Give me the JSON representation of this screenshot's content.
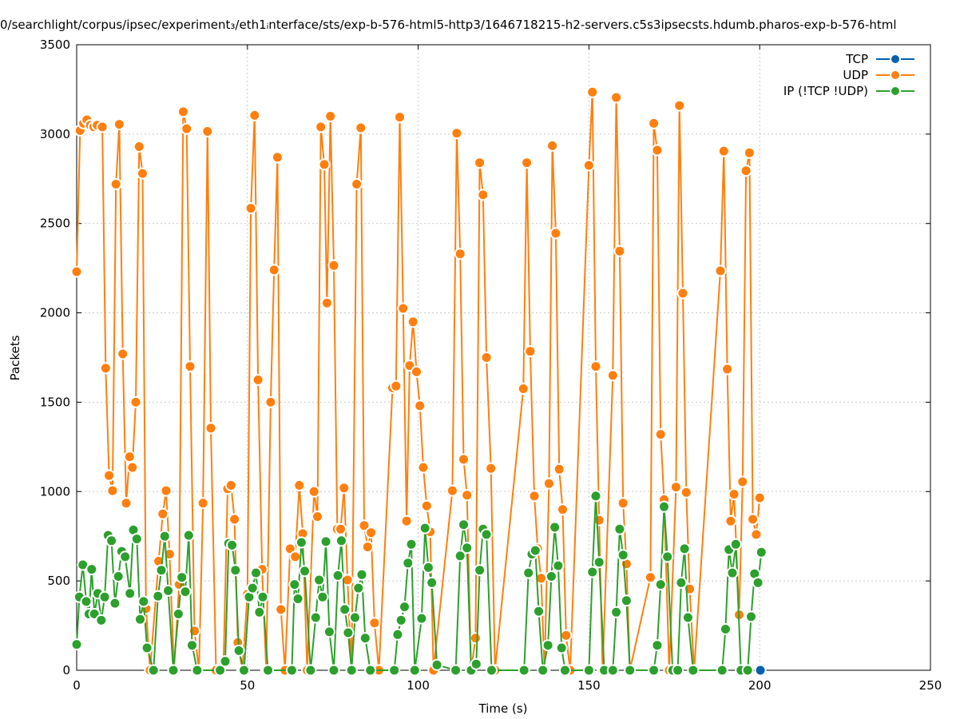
{
  "chart_data": {
    "type": "line",
    "title": "0/searchlight/corpus/ipsec/experiment₃/eth1ᵢnterface/sts/exp-b-576-html5-http3/1646718215-h2-servers.c5s3ipsecsts.hdumb.pharos-exp-b-576-html",
    "xlabel": "Time (s)",
    "ylabel": "Packets",
    "xlim": [
      0,
      250
    ],
    "ylim": [
      0,
      3500
    ],
    "xticks": [
      0,
      50,
      100,
      150,
      200,
      250
    ],
    "yticks": [
      0,
      500,
      1000,
      1500,
      2000,
      2500,
      3000,
      3500
    ],
    "grid": true,
    "legend_position": "top-right",
    "series": [
      {
        "name": "TCP",
        "color": "#0060ad",
        "points": [
          [
            200.2,
            0
          ]
        ]
      },
      {
        "name": "UDP",
        "color": "#ff7f0e",
        "points": [
          [
            0,
            2230
          ],
          [
            1,
            3020
          ],
          [
            2,
            3060
          ],
          [
            3,
            3080
          ],
          [
            4,
            3050
          ],
          [
            5,
            3040
          ],
          [
            6,
            3050
          ],
          [
            7.5,
            3040
          ],
          [
            8.5,
            1690
          ],
          [
            9.5,
            1090
          ],
          [
            10.5,
            1005
          ],
          [
            11.5,
            2720
          ],
          [
            12.5,
            3055
          ],
          [
            13.5,
            1770
          ],
          [
            14.5,
            935
          ],
          [
            15.5,
            1195
          ],
          [
            16.3,
            1135
          ],
          [
            17.3,
            1500
          ],
          [
            18.3,
            2930
          ],
          [
            19.3,
            2780
          ],
          [
            20.3,
            345
          ],
          [
            21.5,
            0
          ],
          [
            24,
            610
          ],
          [
            25.2,
            875
          ],
          [
            26.2,
            1005
          ],
          [
            27.2,
            650
          ],
          [
            28.5,
            0
          ],
          [
            30,
            480
          ],
          [
            31.2,
            3125
          ],
          [
            32.2,
            3030
          ],
          [
            33.2,
            1700
          ],
          [
            34.5,
            220
          ],
          [
            35.8,
            0
          ],
          [
            37,
            935
          ],
          [
            38.3,
            3015
          ],
          [
            39.3,
            1355
          ],
          [
            40.8,
            0
          ],
          [
            43,
            45
          ],
          [
            44.2,
            1015
          ],
          [
            45.2,
            1035
          ],
          [
            46.2,
            845
          ],
          [
            47.2,
            155
          ],
          [
            48.5,
            0
          ],
          [
            50,
            425
          ],
          [
            51,
            2585
          ],
          [
            52.1,
            3105
          ],
          [
            53.1,
            1625
          ],
          [
            54.3,
            565
          ],
          [
            55.5,
            0
          ],
          [
            56.8,
            1500
          ],
          [
            57.8,
            2240
          ],
          [
            58.8,
            2870
          ],
          [
            59.8,
            340
          ],
          [
            61,
            0
          ],
          [
            62.5,
            680
          ],
          [
            64,
            635
          ],
          [
            65.2,
            1035
          ],
          [
            66.2,
            765
          ],
          [
            67.5,
            0
          ],
          [
            69.5,
            1000
          ],
          [
            70.5,
            860
          ],
          [
            71.5,
            3040
          ],
          [
            72.5,
            2830
          ],
          [
            73.3,
            2055
          ],
          [
            74.3,
            3100
          ],
          [
            75.3,
            2265
          ],
          [
            76.3,
            790
          ],
          [
            77.3,
            790
          ],
          [
            78.3,
            1020
          ],
          [
            79.3,
            505
          ],
          [
            80.5,
            0
          ],
          [
            82,
            2720
          ],
          [
            83.2,
            3035
          ],
          [
            84.2,
            810
          ],
          [
            85.2,
            690
          ],
          [
            86.2,
            770
          ],
          [
            87.2,
            265
          ],
          [
            88.5,
            0
          ],
          [
            92.5,
            1580
          ],
          [
            93.5,
            1590
          ],
          [
            94.6,
            3095
          ],
          [
            95.6,
            2025
          ],
          [
            96.6,
            835
          ],
          [
            97.5,
            1705
          ],
          [
            98.5,
            1950
          ],
          [
            99.5,
            1670
          ],
          [
            100.5,
            1480
          ],
          [
            101.5,
            1135
          ],
          [
            102.5,
            920
          ],
          [
            103.5,
            775
          ],
          [
            104.5,
            0
          ],
          [
            110,
            1005
          ],
          [
            111.3,
            3005
          ],
          [
            112.3,
            2330
          ],
          [
            113.3,
            1180
          ],
          [
            114.3,
            980
          ],
          [
            115.5,
            0
          ],
          [
            116.8,
            180
          ],
          [
            118,
            2840
          ],
          [
            119,
            2660
          ],
          [
            120,
            1750
          ],
          [
            121.3,
            1130
          ],
          [
            122.5,
            0
          ],
          [
            130.8,
            1575
          ],
          [
            131.8,
            2840
          ],
          [
            132.8,
            1785
          ],
          [
            134,
            975
          ],
          [
            135,
            680
          ],
          [
            136,
            515
          ],
          [
            137,
            0
          ],
          [
            138.3,
            1045
          ],
          [
            139.3,
            2935
          ],
          [
            140.3,
            2445
          ],
          [
            141.3,
            1125
          ],
          [
            142.3,
            900
          ],
          [
            143.3,
            195
          ],
          [
            144.5,
            0
          ],
          [
            150,
            2825
          ],
          [
            151,
            3235
          ],
          [
            152,
            1700
          ],
          [
            153,
            840
          ],
          [
            154,
            0
          ],
          [
            157,
            1650
          ],
          [
            158,
            3205
          ],
          [
            159,
            2345
          ],
          [
            160,
            935
          ],
          [
            161,
            595
          ],
          [
            162,
            0
          ],
          [
            168,
            520
          ],
          [
            169,
            3060
          ],
          [
            170,
            2910
          ],
          [
            171,
            1320
          ],
          [
            172,
            955
          ],
          [
            173.5,
            0
          ],
          [
            175.5,
            1025
          ],
          [
            176.5,
            3160
          ],
          [
            177.5,
            2110
          ],
          [
            178.5,
            995
          ],
          [
            179.5,
            455
          ],
          [
            180.8,
            0
          ],
          [
            188.5,
            2235
          ],
          [
            189.5,
            2905
          ],
          [
            190.5,
            1685
          ],
          [
            191.5,
            835
          ],
          [
            192.5,
            985
          ],
          [
            194,
            310
          ],
          [
            195,
            1055
          ],
          [
            196,
            2795
          ],
          [
            197,
            2895
          ],
          [
            198,
            845
          ],
          [
            199,
            760
          ],
          [
            200,
            965
          ]
        ]
      },
      {
        "name": "IP (!TCP  !UDP)",
        "color": "#2ca02c",
        "points": [
          [
            0,
            145
          ],
          [
            0.8,
            410
          ],
          [
            1.8,
            590
          ],
          [
            2.8,
            385
          ],
          [
            3.6,
            315
          ],
          [
            4.4,
            565
          ],
          [
            5.2,
            315
          ],
          [
            6.2,
            430
          ],
          [
            7.2,
            280
          ],
          [
            8.2,
            410
          ],
          [
            9.2,
            755
          ],
          [
            10.2,
            725
          ],
          [
            11.2,
            375
          ],
          [
            12.2,
            525
          ],
          [
            13.2,
            665
          ],
          [
            14.2,
            635
          ],
          [
            15.6,
            430
          ],
          [
            16.6,
            785
          ],
          [
            17.6,
            735
          ],
          [
            18.6,
            285
          ],
          [
            19.6,
            385
          ],
          [
            20.6,
            125
          ],
          [
            22.5,
            0
          ],
          [
            23.8,
            415
          ],
          [
            24.8,
            560
          ],
          [
            25.8,
            750
          ],
          [
            26.8,
            445
          ],
          [
            28.3,
            0
          ],
          [
            29.8,
            315
          ],
          [
            30.8,
            520
          ],
          [
            31.8,
            440
          ],
          [
            32.8,
            755
          ],
          [
            33.8,
            140
          ],
          [
            35.3,
            0
          ],
          [
            42,
            0
          ],
          [
            43.5,
            50
          ],
          [
            44.5,
            710
          ],
          [
            45.5,
            700
          ],
          [
            46.5,
            560
          ],
          [
            47.5,
            110
          ],
          [
            49,
            0
          ],
          [
            50.5,
            410
          ],
          [
            51.5,
            460
          ],
          [
            52.5,
            545
          ],
          [
            53.5,
            325
          ],
          [
            54.5,
            410
          ],
          [
            56,
            0
          ],
          [
            63,
            0
          ],
          [
            63.8,
            480
          ],
          [
            64.8,
            400
          ],
          [
            65.8,
            715
          ],
          [
            66.8,
            555
          ],
          [
            68.5,
            0
          ],
          [
            70,
            295
          ],
          [
            71,
            505
          ],
          [
            72,
            410
          ],
          [
            73,
            720
          ],
          [
            74,
            215
          ],
          [
            75.3,
            0
          ],
          [
            76.5,
            530
          ],
          [
            77.5,
            725
          ],
          [
            78.5,
            340
          ],
          [
            79.5,
            210
          ],
          [
            80.5,
            0
          ],
          [
            81.5,
            295
          ],
          [
            82.5,
            460
          ],
          [
            83.5,
            535
          ],
          [
            84.5,
            180
          ],
          [
            86,
            0
          ],
          [
            93,
            0
          ],
          [
            94,
            200
          ],
          [
            95,
            280
          ],
          [
            96,
            355
          ],
          [
            97,
            600
          ],
          [
            98,
            705
          ],
          [
            99,
            0
          ],
          [
            101,
            290
          ],
          [
            102,
            795
          ],
          [
            103,
            575
          ],
          [
            104,
            490
          ],
          [
            105.5,
            30
          ],
          [
            111,
            0
          ],
          [
            112.3,
            640
          ],
          [
            113.3,
            815
          ],
          [
            114.3,
            685
          ],
          [
            115.5,
            0
          ],
          [
            117,
            35
          ],
          [
            118,
            560
          ],
          [
            119,
            790
          ],
          [
            120,
            760
          ],
          [
            121.5,
            0
          ],
          [
            131,
            0
          ],
          [
            132.3,
            545
          ],
          [
            133.3,
            650
          ],
          [
            134.3,
            670
          ],
          [
            135.3,
            330
          ],
          [
            136.5,
            0
          ],
          [
            138,
            140
          ],
          [
            139,
            525
          ],
          [
            140,
            800
          ],
          [
            141,
            585
          ],
          [
            142,
            125
          ],
          [
            143,
            0
          ],
          [
            150,
            0
          ],
          [
            151,
            550
          ],
          [
            152,
            975
          ],
          [
            153,
            605
          ],
          [
            154.5,
            0
          ],
          [
            157,
            0
          ],
          [
            158,
            325
          ],
          [
            159,
            790
          ],
          [
            160,
            645
          ],
          [
            161,
            390
          ],
          [
            162,
            0
          ],
          [
            169,
            0
          ],
          [
            170,
            140
          ],
          [
            171,
            480
          ],
          [
            172,
            915
          ],
          [
            173,
            635
          ],
          [
            174.5,
            0
          ],
          [
            176,
            0
          ],
          [
            177,
            490
          ],
          [
            178,
            680
          ],
          [
            179,
            295
          ],
          [
            180.5,
            0
          ],
          [
            189,
            0
          ],
          [
            190,
            230
          ],
          [
            191,
            675
          ],
          [
            192,
            545
          ],
          [
            193,
            705
          ],
          [
            194.5,
            0
          ],
          [
            196.5,
            0
          ],
          [
            197.5,
            300
          ],
          [
            198.5,
            540
          ],
          [
            199.5,
            490
          ],
          [
            200.5,
            660
          ]
        ]
      }
    ]
  }
}
